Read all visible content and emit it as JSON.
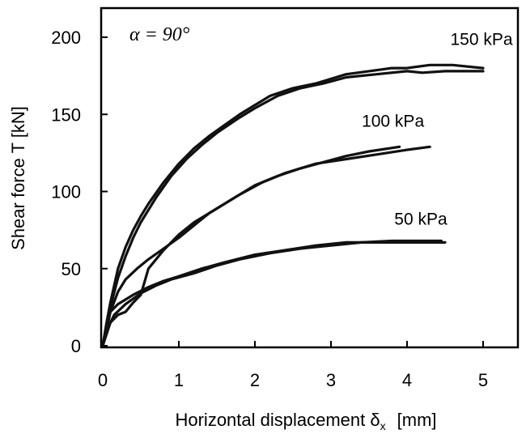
{
  "chart_data": {
    "type": "line",
    "annotation": "α = 90°",
    "xlabel": "Horizontal displacement δ",
    "xlabel_subscript": "x",
    "xlabel_unit": "[mm]",
    "ylabel": "Shear force  T   [kN]",
    "xlim": [
      0,
      5.5
    ],
    "ylim": [
      0,
      220
    ],
    "xticks": [
      "0",
      "1",
      "2",
      "3",
      "4",
      "5"
    ],
    "yticks": [
      "0",
      "50",
      "100",
      "150",
      "200"
    ],
    "grid": false,
    "series": [
      {
        "name": "150 kPa",
        "color": "#111111",
        "curves": [
          {
            "x": [
              0,
              0.05,
              0.1,
              0.2,
              0.3,
              0.4,
              0.5,
              0.6,
              0.8,
              1.0,
              1.2,
              1.4,
              1.6,
              1.8,
              2.0,
              2.2,
              2.5,
              2.8,
              3.0,
              3.2,
              3.5,
              3.8,
              4.0,
              4.3,
              4.6,
              5.0
            ],
            "y": [
              0,
              15,
              28,
              50,
              64,
              75,
              84,
              92,
              106,
              118,
              128,
              136,
              143,
              150,
              156,
              162,
              167,
              170,
              173,
              176,
              178,
              180,
              180,
              182,
              182,
              180
            ]
          },
          {
            "x": [
              0,
              0.05,
              0.1,
              0.2,
              0.3,
              0.4,
              0.5,
              0.7,
              0.9,
              1.1,
              1.3,
              1.5,
              1.8,
              2.0,
              2.3,
              2.6,
              2.9,
              3.2,
              3.6,
              4.0,
              4.2,
              4.5,
              5.0
            ],
            "y": [
              0,
              12,
              25,
              44,
              58,
              70,
              80,
              96,
              110,
              121,
              130,
              138,
              148,
              154,
              162,
              167,
              170,
              174,
              176,
              178,
              177,
              178,
              178
            ]
          }
        ]
      },
      {
        "name": "100 kPa",
        "color": "#111111",
        "curves": [
          {
            "x": [
              0,
              0.05,
              0.1,
              0.2,
              0.3,
              0.45,
              0.6,
              0.8,
              1.0,
              1.2,
              1.4,
              1.7,
              2.0,
              2.3,
              2.6,
              2.9,
              3.2,
              3.5,
              3.9
            ],
            "y": [
              0,
              10,
              22,
              35,
              43,
              50,
              56,
              63,
              70,
              78,
              86,
              95,
              104,
              110,
              115,
              119,
              123,
              126,
              129
            ]
          },
          {
            "x": [
              0,
              0.1,
              0.2,
              0.3,
              0.4,
              0.5,
              0.6,
              0.8,
              1.0,
              1.2,
              1.5,
              1.8,
              2.1,
              2.4,
              2.8,
              3.2,
              3.6,
              4.0,
              4.3
            ],
            "y": [
              0,
              15,
              20,
              22,
              28,
              33,
              50,
              62,
              72,
              80,
              89,
              98,
              106,
              112,
              118,
              121,
              124,
              127,
              129
            ]
          }
        ]
      },
      {
        "name": "50 kPa",
        "color": "#111111",
        "curves": [
          {
            "x": [
              0,
              0.05,
              0.1,
              0.2,
              0.4,
              0.6,
              0.8,
              1.0,
              1.3,
              1.6,
              2.0,
              2.4,
              2.8,
              3.2,
              3.6,
              4.0,
              4.5
            ],
            "y": [
              0,
              14,
              22,
              27,
              33,
              38,
              42,
              45,
              50,
              54,
              59,
              62,
              65,
              67,
              67,
              67,
              67
            ]
          },
          {
            "x": [
              0,
              0.05,
              0.15,
              0.3,
              0.5,
              0.7,
              0.9,
              1.2,
              1.5,
              1.8,
              2.2,
              2.6,
              3.0,
              3.4,
              3.8,
              4.2,
              4.45
            ],
            "y": [
              0,
              10,
              20,
              27,
              34,
              39,
              43,
              47,
              52,
              56,
              60,
              63,
              65,
              67,
              68,
              68,
              68
            ]
          }
        ]
      }
    ]
  }
}
